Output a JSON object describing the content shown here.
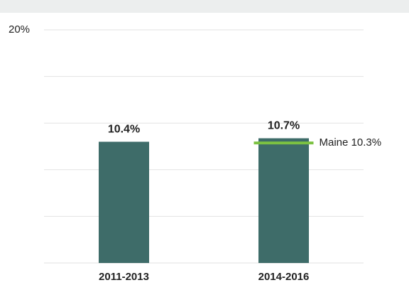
{
  "chart_data": {
    "type": "bar",
    "categories": [
      "2011-2013",
      "2014-2016"
    ],
    "values": [
      10.4,
      10.7
    ],
    "value_labels": [
      "10.4%",
      "10.7%"
    ],
    "color": "#3e6c69",
    "ylim": [
      0,
      20
    ],
    "yticks": [
      0,
      4,
      8,
      12,
      16,
      {
        "value": 20,
        "label": "20%"
      }
    ],
    "grid": true,
    "reference": {
      "value": 10.3,
      "label": "Maine 10.3%",
      "color": "#7cc242"
    }
  }
}
